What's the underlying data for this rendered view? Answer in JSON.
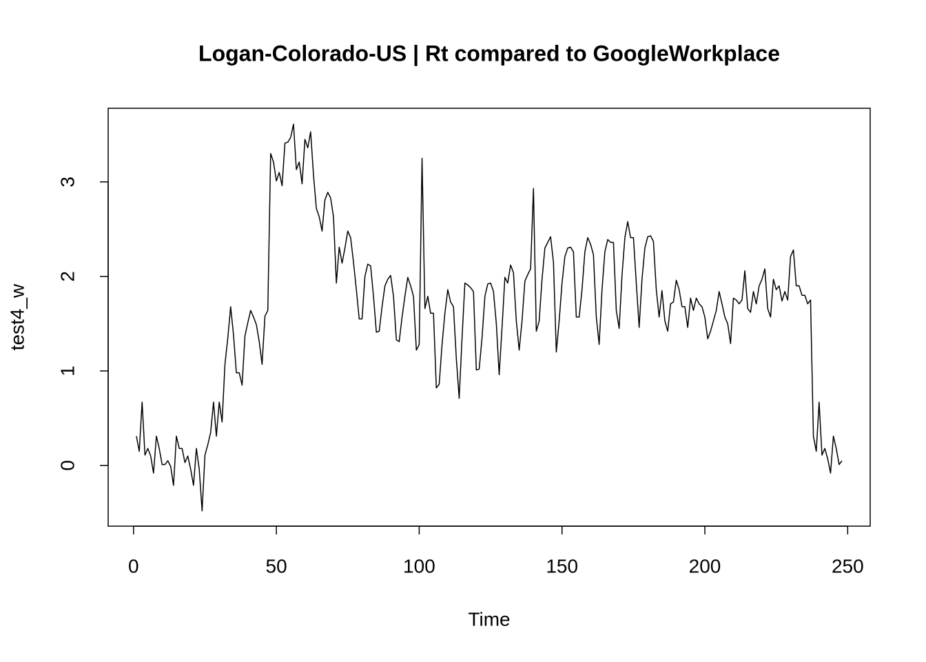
{
  "chart_data": {
    "type": "line",
    "title": "Logan-Colorado-US | Rt compared to GoogleWorkplace",
    "xlabel": "Time",
    "ylabel": "test4_w",
    "x": [
      1,
      2,
      3,
      4,
      5,
      6,
      7,
      8,
      9,
      10,
      11,
      12,
      13,
      14,
      15,
      16,
      17,
      18,
      19,
      20,
      21,
      22,
      23,
      24,
      25,
      26,
      27,
      28,
      29,
      30,
      31,
      32,
      33,
      34,
      35,
      36,
      37,
      38,
      39,
      40,
      41,
      42,
      43,
      44,
      45,
      46,
      47,
      48,
      49,
      50,
      51,
      52,
      53,
      54,
      55,
      56,
      57,
      58,
      59,
      60,
      61,
      62,
      63,
      64,
      65,
      66,
      67,
      68,
      69,
      70,
      71,
      72,
      73,
      74,
      75,
      76,
      77,
      78,
      79,
      80,
      81,
      82,
      83,
      84,
      85,
      86,
      87,
      88,
      89,
      90,
      91,
      92,
      93,
      94,
      95,
      96,
      97,
      98,
      99,
      100,
      101,
      102,
      103,
      104,
      105,
      106,
      107,
      108,
      109,
      110,
      111,
      112,
      113,
      114,
      115,
      116,
      117,
      118,
      119,
      120,
      121,
      122,
      123,
      124,
      125,
      126,
      127,
      128,
      129,
      130,
      131,
      132,
      133,
      134,
      135,
      136,
      137,
      138,
      139,
      140,
      141,
      142,
      143,
      144,
      145,
      146,
      147,
      148,
      149,
      150,
      151,
      152,
      153,
      154,
      155,
      156,
      157,
      158,
      159,
      160,
      161,
      162,
      163,
      164,
      165,
      166,
      167,
      168,
      169,
      170,
      171,
      172,
      173,
      174,
      175,
      176,
      177,
      178,
      179,
      180,
      181,
      182,
      183,
      184,
      185,
      186,
      187,
      188,
      189,
      190,
      191,
      192,
      193,
      194,
      195,
      196,
      197,
      198,
      199,
      200,
      201,
      202,
      203,
      204,
      205,
      206,
      207,
      208,
      209,
      210,
      211,
      212,
      213,
      214,
      215,
      216,
      217,
      218,
      219,
      220,
      221,
      222,
      223,
      224,
      225,
      226,
      227,
      228,
      229,
      230,
      231,
      232,
      233,
      234,
      235,
      236,
      237,
      238,
      239,
      240,
      241,
      242,
      243,
      244,
      245,
      246,
      247,
      248
    ],
    "series": [
      {
        "color": "#000000",
        "values": [
          0.31,
          0.15,
          0.67,
          0.11,
          0.18,
          0.1,
          -0.08,
          0.31,
          0.18,
          0.01,
          0.01,
          0.05,
          -0.01,
          -0.21,
          0.31,
          0.18,
          0.18,
          0.03,
          0.1,
          -0.04,
          -0.21,
          0.18,
          -0.04,
          -0.48,
          0.11,
          0.22,
          0.35,
          0.67,
          0.31,
          0.67,
          0.46,
          1.07,
          1.35,
          1.68,
          1.38,
          0.98,
          0.98,
          0.85,
          1.37,
          1.51,
          1.64,
          1.57,
          1.49,
          1.31,
          1.07,
          1.58,
          1.64,
          3.3,
          3.21,
          3.01,
          3.1,
          2.96,
          3.41,
          3.42,
          3.47,
          3.61,
          3.13,
          3.21,
          2.98,
          3.45,
          3.36,
          3.53,
          3.07,
          2.72,
          2.63,
          2.48,
          2.81,
          2.89,
          2.83,
          2.63,
          1.93,
          2.31,
          2.14,
          2.3,
          2.48,
          2.41,
          2.15,
          1.86,
          1.55,
          1.55,
          2.0,
          2.13,
          2.11,
          1.79,
          1.41,
          1.42,
          1.68,
          1.9,
          1.97,
          2.01,
          1.79,
          1.33,
          1.31,
          1.57,
          1.79,
          1.99,
          1.9,
          1.79,
          1.22,
          1.28,
          3.25,
          1.66,
          1.79,
          1.61,
          1.61,
          0.82,
          0.86,
          1.28,
          1.61,
          1.86,
          1.73,
          1.68,
          1.13,
          0.71,
          1.35,
          1.93,
          1.91,
          1.88,
          1.84,
          1.01,
          1.02,
          1.35,
          1.79,
          1.92,
          1.93,
          1.84,
          1.5,
          0.96,
          1.46,
          1.99,
          1.93,
          2.12,
          2.04,
          1.53,
          1.22,
          1.53,
          1.95,
          2.02,
          2.08,
          2.93,
          1.42,
          1.53,
          1.97,
          2.3,
          2.36,
          2.42,
          2.15,
          1.2,
          1.53,
          1.93,
          2.21,
          2.3,
          2.31,
          2.26,
          1.57,
          1.57,
          1.86,
          2.26,
          2.41,
          2.34,
          2.23,
          1.57,
          1.28,
          1.86,
          2.26,
          2.39,
          2.36,
          2.36,
          1.64,
          1.45,
          2.01,
          2.41,
          2.58,
          2.41,
          2.41,
          1.93,
          1.46,
          1.97,
          2.3,
          2.42,
          2.43,
          2.37,
          1.86,
          1.57,
          1.85,
          1.53,
          1.42,
          1.71,
          1.73,
          1.96,
          1.86,
          1.68,
          1.68,
          1.46,
          1.77,
          1.64,
          1.77,
          1.71,
          1.68,
          1.57,
          1.34,
          1.42,
          1.53,
          1.64,
          1.84,
          1.71,
          1.57,
          1.5,
          1.29,
          1.77,
          1.75,
          1.71,
          1.75,
          2.06,
          1.66,
          1.62,
          1.84,
          1.71,
          1.9,
          1.97,
          2.08,
          1.66,
          1.57,
          1.97,
          1.86,
          1.9,
          1.74,
          1.84,
          1.75,
          2.21,
          2.28,
          1.9,
          1.9,
          1.8,
          1.8,
          1.71,
          1.75,
          0.31,
          0.15,
          0.67,
          0.11,
          0.18,
          0.07,
          -0.08,
          0.31,
          0.18,
          0.01,
          0.05
        ]
      }
    ],
    "xlim": [
      -8.88,
      257.88
    ],
    "xticks": [
      0,
      50,
      100,
      150,
      200,
      250
    ],
    "ylim": [
      -0.642,
      3.779
    ],
    "yticks": [
      0,
      1,
      2,
      3
    ]
  }
}
